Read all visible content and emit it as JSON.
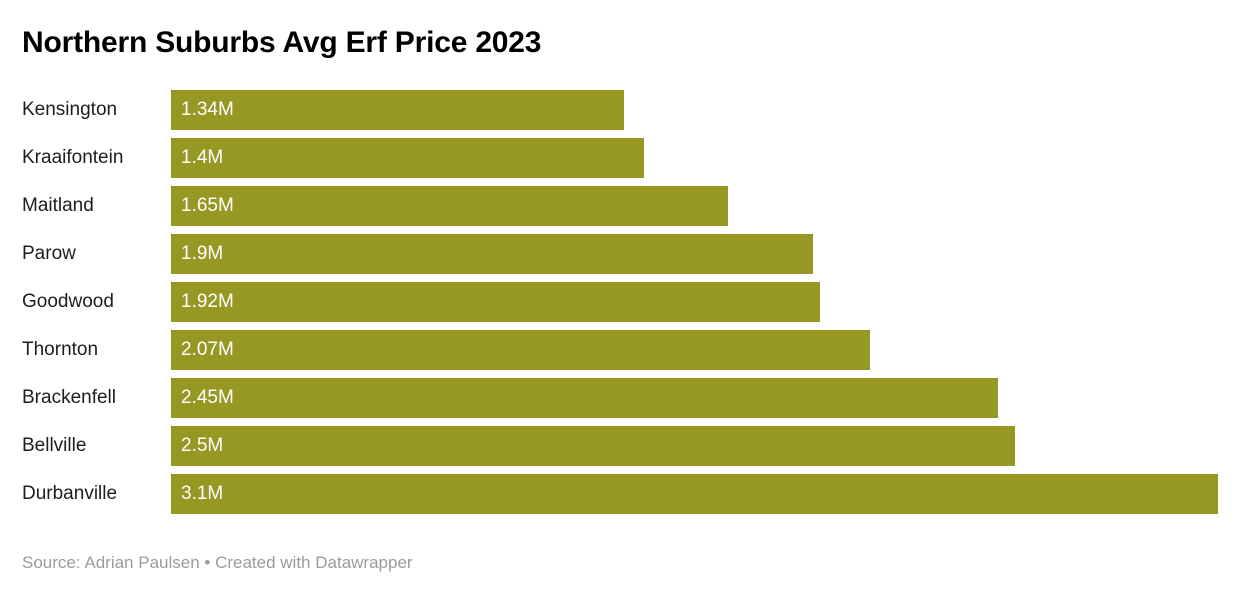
{
  "title": "Northern Suburbs Avg Erf Price 2023",
  "footer": {
    "source_text": "Source: Adrian Paulsen",
    "separator": " • ",
    "attribution": "Created with Datawrapper"
  },
  "colors": {
    "bar": "#969823",
    "title_text": "#000000",
    "category_text": "#1d1d1d",
    "value_text": "#ffffff",
    "footer_text": "#9b9b9b",
    "background": "#ffffff"
  },
  "chart_data": {
    "type": "bar",
    "orientation": "horizontal",
    "title": "Northern Suburbs Avg Erf Price 2023",
    "categories": [
      "Kensington",
      "Kraaifontein",
      "Maitland",
      "Parow",
      "Goodwood",
      "Thornton",
      "Brackenfell",
      "Bellville",
      "Durbanville"
    ],
    "values": [
      1.34,
      1.4,
      1.65,
      1.9,
      1.92,
      2.07,
      2.45,
      2.5,
      3.1
    ],
    "value_labels": [
      "1.34M",
      "1.4M",
      "1.65M",
      "1.9M",
      "1.92M",
      "2.07M",
      "2.45M",
      "2.5M",
      "3.1M"
    ],
    "unit": "M",
    "xlim": [
      0,
      3.1
    ],
    "value_label_position": "inside-start",
    "sort": "ascending",
    "grid": false,
    "legend": false
  }
}
